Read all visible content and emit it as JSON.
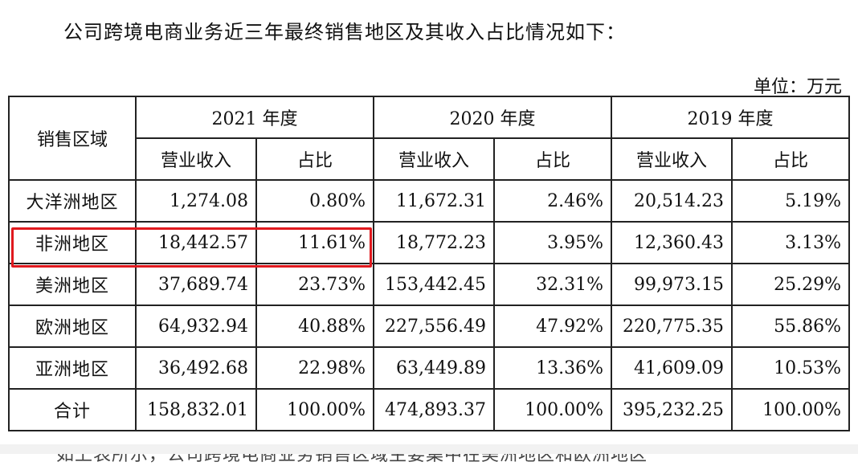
{
  "intro": "公司跨境电商业务近三年最终销售地区及其收入占比情况如下：",
  "unit": "单位：万元",
  "table": {
    "region_header": "销售区域",
    "years": [
      "2021 年度",
      "2020 年度",
      "2019 年度"
    ],
    "sub_headers": [
      "营业收入",
      "占比"
    ],
    "rows": [
      {
        "region": "大洋洲地区",
        "values": [
          "1,274.08",
          "0.80%",
          "11,672.31",
          "2.46%",
          "20,514.23",
          "5.19%"
        ]
      },
      {
        "region": "非洲地区",
        "values": [
          "18,442.57",
          "11.61%",
          "18,772.23",
          "3.95%",
          "12,360.43",
          "3.13%"
        ]
      },
      {
        "region": "美洲地区",
        "values": [
          "37,689.74",
          "23.73%",
          "153,442.45",
          "32.31%",
          "99,973.15",
          "25.29%"
        ]
      },
      {
        "region": "欧洲地区",
        "values": [
          "64,932.94",
          "40.88%",
          "227,556.49",
          "47.92%",
          "220,775.35",
          "55.86%"
        ]
      },
      {
        "region": "亚洲地区",
        "values": [
          "36,492.68",
          "22.98%",
          "63,449.89",
          "13.36%",
          "41,609.09",
          "10.53%"
        ]
      },
      {
        "region": "合计",
        "values": [
          "158,832.01",
          "100.00%",
          "474,893.37",
          "100.00%",
          "395,232.25",
          "100.00%"
        ]
      }
    ]
  },
  "highlight_color": "#e0191e",
  "cut_text": "如上表所示，公司跨境电商业务销售区域主要集中在美洲地区和欧洲地区"
}
